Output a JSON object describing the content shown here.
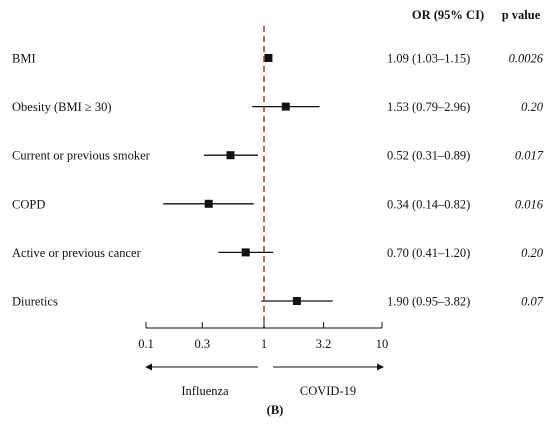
{
  "chart_data": {
    "type": "forest",
    "x_scale": "log",
    "xlim": [
      0.1,
      10
    ],
    "x_ticks": [
      "0.1",
      "0.3",
      "1",
      "3.2",
      "10"
    ],
    "x_tick_values": [
      0.1,
      0.3,
      1,
      3.2,
      10
    ],
    "reference_value": 1,
    "reference_line_color": "#c0392b",
    "marker_color": "#111111",
    "headers": {
      "estimate": "OR (95% CI)",
      "p": "p value"
    },
    "direction_labels": {
      "left": "Influenza",
      "right": "COVID-19"
    },
    "panel_label": "(B)",
    "rows": [
      {
        "label": "BMI",
        "or": 1.09,
        "lo": 1.03,
        "hi": 1.15,
        "ci_text": "1.09 (1.03–1.15)",
        "p": "0.0026"
      },
      {
        "label": "Obesity (BMI ≥ 30)",
        "or": 1.53,
        "lo": 0.79,
        "hi": 2.96,
        "ci_text": "1.53 (0.79–2.96)",
        "p": "0.20"
      },
      {
        "label": "Current or previous smoker",
        "or": 0.52,
        "lo": 0.31,
        "hi": 0.89,
        "ci_text": "0.52 (0.31–0.89)",
        "p": "0.017"
      },
      {
        "label": "COPD",
        "or": 0.34,
        "lo": 0.14,
        "hi": 0.82,
        "ci_text": "0.34 (0.14–0.82)",
        "p": "0.016"
      },
      {
        "label": "Active or previous cancer",
        "or": 0.7,
        "lo": 0.41,
        "hi": 1.2,
        "ci_text": "0.70 (0.41–1.20)",
        "p": "0.20"
      },
      {
        "label": "Diuretics",
        "or": 1.9,
        "lo": 0.95,
        "hi": 3.82,
        "ci_text": "1.90 (0.95–3.82)",
        "p": "0.07"
      }
    ]
  }
}
